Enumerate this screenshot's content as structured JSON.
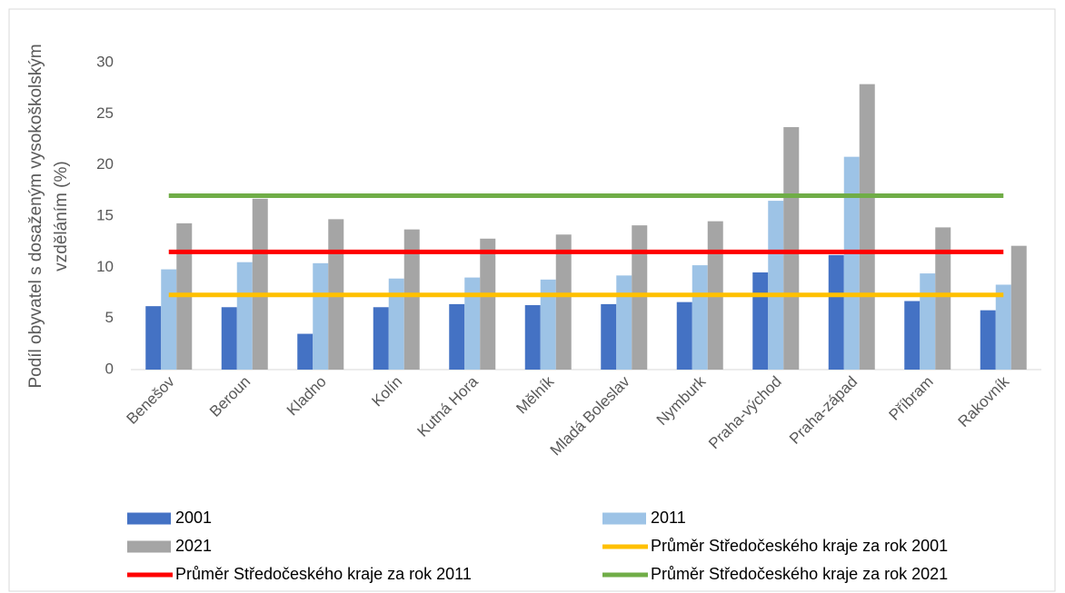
{
  "chart_data": {
    "type": "bar",
    "y_label": [
      "Podíl obyvatel s dosaženým vysokoškolským",
      "vzděláním (%)"
    ],
    "categories": [
      "Benešov",
      "Beroun",
      "Kladno",
      "Kolín",
      "Kutná Hora",
      "Mělník",
      "Mladá Boleslav",
      "Nymburk",
      "Praha-východ",
      "Praha-západ",
      "Příbram",
      "Rakovník"
    ],
    "series": [
      {
        "name": "2001",
        "type": "bar",
        "color": "#4472c4",
        "values": [
          6.2,
          6.1,
          3.5,
          6.1,
          6.4,
          6.3,
          6.4,
          6.6,
          9.5,
          11.2,
          6.7,
          5.8
        ]
      },
      {
        "name": "2011",
        "type": "bar",
        "color": "#9dc3e6",
        "values": [
          9.8,
          10.5,
          10.4,
          8.9,
          9.0,
          8.8,
          9.2,
          10.2,
          16.5,
          20.8,
          9.4,
          8.3
        ]
      },
      {
        "name": "2021",
        "type": "bar",
        "color": "#a5a5a5",
        "values": [
          14.3,
          16.7,
          14.7,
          13.7,
          12.8,
          13.2,
          14.1,
          14.5,
          23.7,
          27.9,
          13.9,
          12.1
        ]
      },
      {
        "name": "Průměr Středočeského kraje za rok 2001",
        "type": "line",
        "color": "#ffc000",
        "values": [
          7.3,
          7.3,
          7.3,
          7.3,
          7.3,
          7.3,
          7.3,
          7.3,
          7.3,
          7.3,
          7.3,
          7.3
        ]
      },
      {
        "name": "Průměr Středočeského kraje za rok 2011",
        "type": "line",
        "color": "#ff0000",
        "values": [
          11.5,
          11.5,
          11.5,
          11.5,
          11.5,
          11.5,
          11.5,
          11.5,
          11.5,
          11.5,
          11.5,
          11.5
        ]
      },
      {
        "name": "Průměr Středočeského kraje za rok 2021",
        "type": "line",
        "color": "#70ad47",
        "values": [
          17,
          17,
          17,
          17,
          17,
          17,
          17,
          17,
          17,
          17,
          17,
          17
        ]
      }
    ],
    "ylim": [
      0,
      30
    ],
    "yticks": [
      0,
      5,
      10,
      15,
      20,
      25,
      30
    ],
    "grid": false,
    "legend": "bottom"
  }
}
